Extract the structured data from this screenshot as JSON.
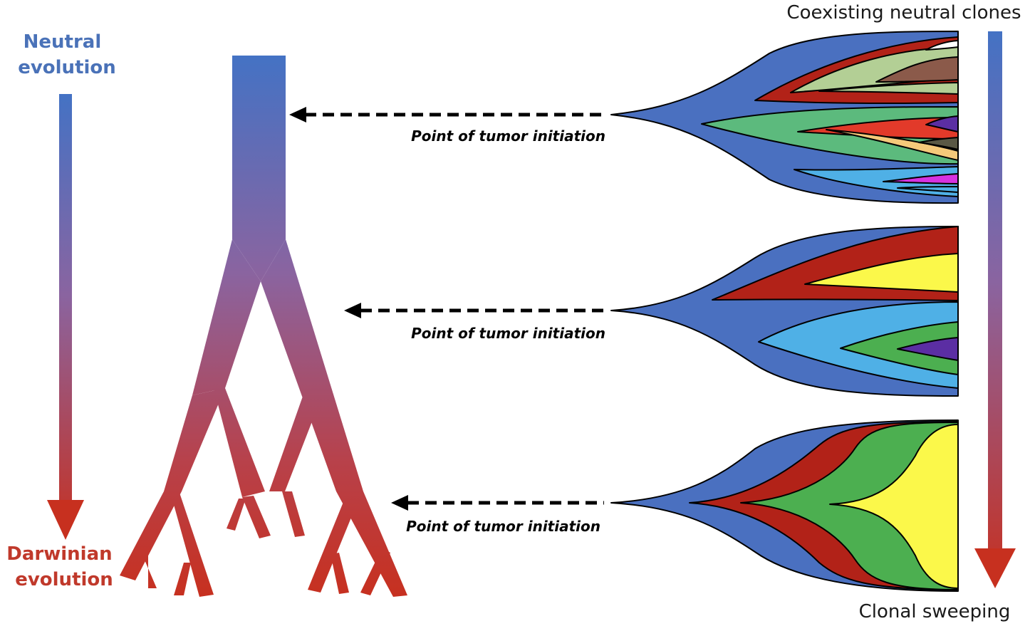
{
  "labels": {
    "neutral_line1": "Neutral",
    "neutral_line2": "evolution",
    "darwinian_line1": "Darwinian",
    "darwinian_line2": "evolution",
    "coexisting": "Coexisting neutral clones",
    "sweeping": "Clonal sweeping",
    "initiation_top": "Point of tumor initiation",
    "initiation_middle": "Point of tumor initiation",
    "initiation_bottom": "Point of tumor initiation"
  },
  "colors": {
    "neutral_blue": "#4472c4",
    "darwinian_red": "#c0392b",
    "clone_blue": "#4a70c0",
    "clone_red": "#b22218",
    "clone_green": "#4caf50",
    "clone_yellow": "#fbf84a",
    "clone_lightblue": "#4fb0e6",
    "clone_purple": "#5b2ea3"
  }
}
